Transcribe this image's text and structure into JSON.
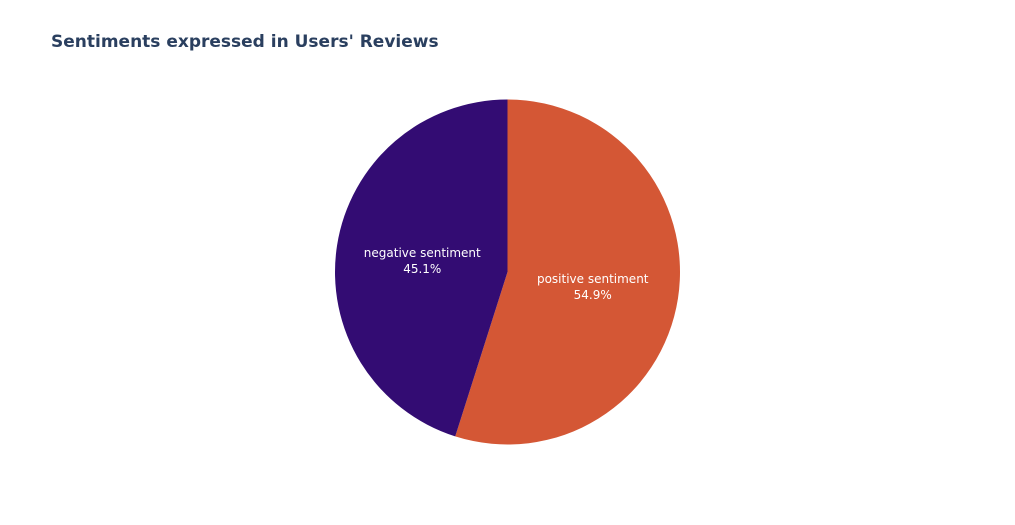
{
  "chart_data": {
    "type": "pie",
    "title": "Sentiments expressed in Users' Reviews",
    "direction": "clockwise",
    "start": "top",
    "slices": [
      {
        "label": "positive sentiment",
        "value": 54.9,
        "percent_text": "54.9%",
        "color": "#d45735"
      },
      {
        "label": "negative sentiment",
        "value": 45.1,
        "percent_text": "45.1%",
        "color": "#330c73"
      }
    ]
  }
}
